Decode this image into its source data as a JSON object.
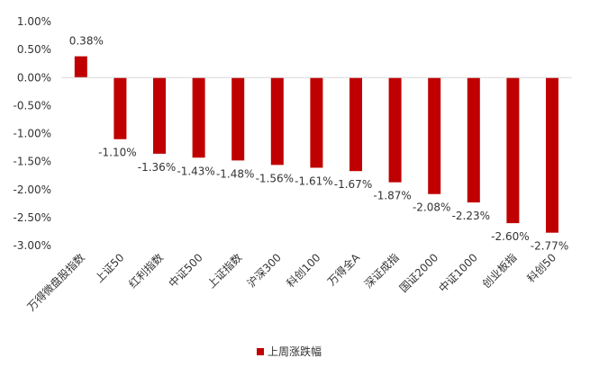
{
  "chart_data": {
    "type": "bar",
    "categories": [
      "万得微盘股指数",
      "上证50",
      "红利指数",
      "中证500",
      "上证指数",
      "沪深300",
      "科创100",
      "万得全A",
      "深证成指",
      "国证2000",
      "中证1000",
      "创业板指",
      "科创50"
    ],
    "series": [
      {
        "name": "上周涨跌幅",
        "values": [
          0.38,
          -1.1,
          -1.36,
          -1.43,
          -1.48,
          -1.56,
          -1.61,
          -1.67,
          -1.87,
          -2.08,
          -2.23,
          -2.6,
          -2.77
        ],
        "labels": [
          "0.38%",
          "-1.10%",
          "-1.36%",
          "-1.43%",
          "-1.48%",
          "-1.56%",
          "-1.61%",
          "-1.67%",
          "-1.87%",
          "-2.08%",
          "-2.23%",
          "-2.60%",
          "-2.77%"
        ],
        "color": "#C00000"
      }
    ],
    "yticks": [
      1.0,
      0.5,
      0.0,
      -0.5,
      -1.0,
      -1.5,
      -2.0,
      -2.5,
      -3.0
    ],
    "ytick_labels": [
      "1.00%",
      "0.50%",
      "0.00%",
      "-0.50%",
      "-1.00%",
      "-1.50%",
      "-2.00%",
      "-2.50%",
      "-3.00%"
    ],
    "ylim": [
      -3.0,
      1.0
    ],
    "grid": false,
    "legend_position": "bottom",
    "title": "",
    "xlabel": "",
    "ylabel": ""
  },
  "legend": {
    "label": "上周涨跌幅"
  }
}
